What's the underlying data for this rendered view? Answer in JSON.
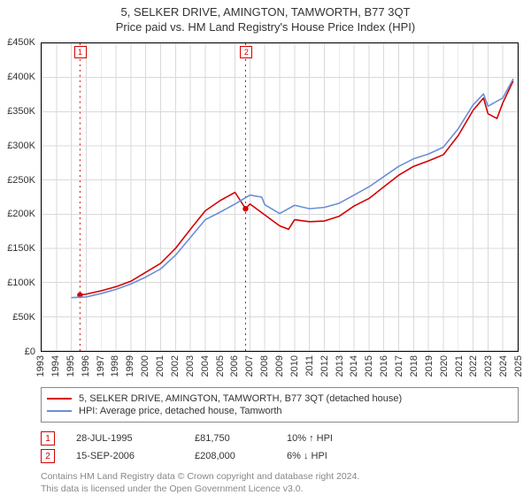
{
  "title": "5, SELKER DRIVE, AMINGTON, TAMWORTH, B77 3QT",
  "subtitle": "Price paid vs. HM Land Registry's House Price Index (HPI)",
  "chart": {
    "type": "line",
    "background": "#ffffff",
    "grid_color": "#d9d9d9",
    "axis_color": "#000000",
    "font_size_axis": 11,
    "x": {
      "min": 1993,
      "max": 2025,
      "tick_step": 1
    },
    "y": {
      "min": 0,
      "max": 450000,
      "tick_step": 50000,
      "tick_labels": [
        "£0",
        "£50K",
        "£100K",
        "£150K",
        "£200K",
        "£250K",
        "£300K",
        "£350K",
        "£400K",
        "£450K"
      ]
    },
    "series": [
      {
        "name": "5, SELKER DRIVE, AMINGTON, TAMWORTH, B77 3QT (detached house)",
        "color": "#d40000",
        "width": 1.6,
        "points": [
          [
            1995.58,
            81750
          ],
          [
            1996,
            83000
          ],
          [
            1997,
            88000
          ],
          [
            1998,
            94000
          ],
          [
            1999,
            102000
          ],
          [
            2000,
            115000
          ],
          [
            2001,
            128000
          ],
          [
            2002,
            150000
          ],
          [
            2003,
            178000
          ],
          [
            2004,
            205000
          ],
          [
            2005,
            220000
          ],
          [
            2006,
            232000
          ],
          [
            2006.71,
            208000
          ],
          [
            2007,
            215000
          ],
          [
            2008,
            199000
          ],
          [
            2009,
            183000
          ],
          [
            2009.6,
            178000
          ],
          [
            2010,
            192000
          ],
          [
            2011,
            189000
          ],
          [
            2012,
            190000
          ],
          [
            2013,
            197000
          ],
          [
            2014,
            212000
          ],
          [
            2015,
            223000
          ],
          [
            2016,
            240000
          ],
          [
            2017,
            257000
          ],
          [
            2018,
            270000
          ],
          [
            2019,
            278000
          ],
          [
            2020,
            287000
          ],
          [
            2021,
            315000
          ],
          [
            2022,
            352000
          ],
          [
            2022.7,
            370000
          ],
          [
            2023,
            347000
          ],
          [
            2023.6,
            340000
          ],
          [
            2024,
            363000
          ],
          [
            2024.7,
            395000
          ]
        ]
      },
      {
        "name": "HPI: Average price, detached house, Tamworth",
        "color": "#6a8fd6",
        "width": 1.6,
        "points": [
          [
            1995,
            78000
          ],
          [
            1996,
            79000
          ],
          [
            1997,
            84000
          ],
          [
            1998,
            90000
          ],
          [
            1999,
            98000
          ],
          [
            2000,
            108000
          ],
          [
            2001,
            120000
          ],
          [
            2002,
            140000
          ],
          [
            2003,
            166000
          ],
          [
            2004,
            192000
          ],
          [
            2005,
            203000
          ],
          [
            2006,
            215000
          ],
          [
            2007,
            228000
          ],
          [
            2007.8,
            225000
          ],
          [
            2008,
            214000
          ],
          [
            2009,
            201000
          ],
          [
            2010,
            213000
          ],
          [
            2011,
            208000
          ],
          [
            2012,
            210000
          ],
          [
            2013,
            216000
          ],
          [
            2014,
            228000
          ],
          [
            2015,
            240000
          ],
          [
            2016,
            255000
          ],
          [
            2017,
            270000
          ],
          [
            2018,
            281000
          ],
          [
            2019,
            288000
          ],
          [
            2020,
            298000
          ],
          [
            2021,
            325000
          ],
          [
            2022,
            360000
          ],
          [
            2022.7,
            376000
          ],
          [
            2023,
            358000
          ],
          [
            2024,
            370000
          ],
          [
            2024.7,
            398000
          ]
        ]
      }
    ],
    "sale_markers": [
      {
        "n": "1",
        "year": 1995.58,
        "price": 81750,
        "color": "#d40000"
      },
      {
        "n": "2",
        "year": 2006.71,
        "price": 208000,
        "color": "#d40000"
      }
    ]
  },
  "legend": {
    "items": [
      {
        "color": "#d40000",
        "label": "5, SELKER DRIVE, AMINGTON, TAMWORTH, B77 3QT (detached house)"
      },
      {
        "color": "#6a8fd6",
        "label": "HPI: Average price, detached house, Tamworth"
      }
    ]
  },
  "sales": [
    {
      "n": "1",
      "color": "#d40000",
      "date": "28-JUL-1995",
      "price": "£81,750",
      "delta": "10% ↑ HPI"
    },
    {
      "n": "2",
      "color": "#d40000",
      "date": "15-SEP-2006",
      "price": "£208,000",
      "delta": "6% ↓ HPI"
    }
  ],
  "footer": {
    "line1": "Contains HM Land Registry data © Crown copyright and database right 2024.",
    "line2": "This data is licensed under the Open Government Licence v3.0."
  }
}
